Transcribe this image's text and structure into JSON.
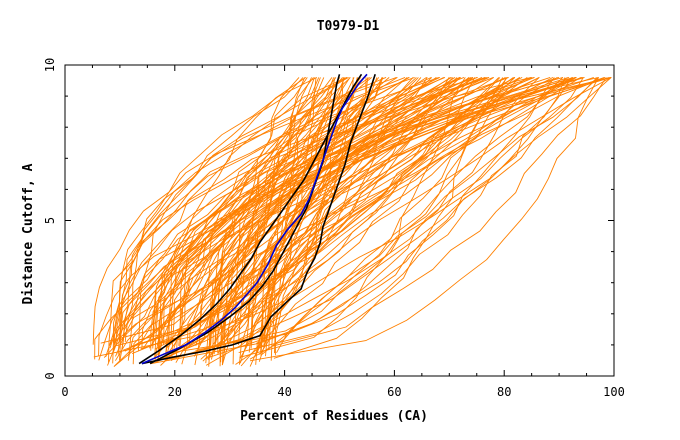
{
  "chart_data": {
    "type": "line",
    "title": "T0979-D1",
    "xlabel": "Percent of Residues (CA)",
    "ylabel": "Distance Cutoff, A",
    "xlim": [
      0,
      100
    ],
    "ylim": [
      0,
      10
    ],
    "xticks": [
      "0",
      "20",
      "40",
      "60",
      "80",
      "100"
    ],
    "yticks": [
      "0",
      "5",
      "10"
    ],
    "grid": false,
    "legend": "none",
    "colors": {
      "background_models": "#ff8000",
      "highlight": "#0000cc",
      "reference": "#000000"
    },
    "highlight_series": {
      "name": "",
      "x": [
        14.0,
        18.0,
        22.0,
        25.5,
        28.5,
        31.0,
        33.0,
        35.0,
        37.0,
        38.5,
        40.5,
        43.0,
        44.5,
        45.5,
        46.5,
        47.5,
        48.5,
        49.5,
        50.5,
        52.0,
        53.5,
        55.0
      ],
      "y": [
        0.4,
        0.7,
        1.0,
        1.4,
        1.8,
        2.2,
        2.6,
        3.0,
        3.6,
        4.2,
        4.7,
        5.2,
        5.7,
        6.2,
        6.7,
        7.2,
        7.7,
        8.2,
        8.6,
        9.0,
        9.4,
        9.7
      ]
    },
    "reference_series": [
      {
        "name": "",
        "x": [
          13.5,
          17.0,
          21.0,
          24.5,
          27.5,
          30.0,
          32.0,
          34.0,
          35.5,
          37.5,
          39.5,
          41.5,
          43.5,
          45.0,
          46.5,
          48.0,
          49.5,
          51.0,
          52.5,
          54.0
        ],
        "y": [
          0.4,
          0.8,
          1.3,
          1.8,
          2.3,
          2.8,
          3.3,
          3.8,
          4.3,
          4.8,
          5.3,
          5.8,
          6.3,
          6.8,
          7.3,
          7.8,
          8.3,
          8.8,
          9.3,
          9.7
        ]
      },
      {
        "name": "",
        "x": [
          14.0,
          19.5,
          25.5,
          30.5,
          35.5,
          37.5,
          40.5,
          43.0,
          44.0,
          45.5,
          46.5,
          47.0,
          48.0,
          49.0,
          50.0,
          51.0,
          52.0,
          53.5,
          55.0,
          56.5
        ],
        "y": [
          0.4,
          0.6,
          0.8,
          1.0,
          1.3,
          1.9,
          2.4,
          2.8,
          3.3,
          3.8,
          4.3,
          4.8,
          5.3,
          5.8,
          6.3,
          6.8,
          7.5,
          8.2,
          8.9,
          9.7
        ]
      },
      {
        "name": "",
        "x": [
          15.5,
          21.0,
          26.0,
          30.0,
          33.5,
          36.0,
          38.0,
          39.5,
          41.0,
          42.5,
          44.0,
          45.0,
          46.0,
          47.0,
          47.5,
          48.0,
          48.5,
          49.0,
          49.5,
          50.0
        ],
        "y": [
          0.4,
          0.9,
          1.4,
          1.9,
          2.4,
          2.9,
          3.4,
          3.9,
          4.4,
          4.9,
          5.4,
          5.9,
          6.4,
          6.9,
          7.4,
          7.9,
          8.4,
          8.9,
          9.4,
          9.7
        ]
      }
    ],
    "background_models": {
      "count": 150,
      "x_start_range": [
        5,
        38
      ],
      "x_end_range": [
        42,
        100
      ],
      "y_top": 9.6
    }
  }
}
